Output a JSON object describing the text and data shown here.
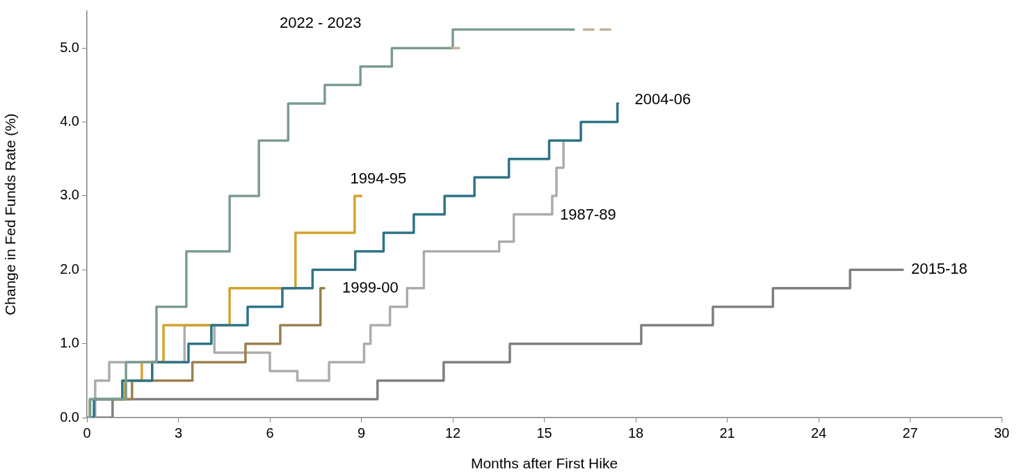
{
  "chart_data": {
    "type": "step",
    "xlabel": "Months after First Hike",
    "ylabel": "Change in Fed Funds Rate (%)",
    "xlim": [
      0,
      30
    ],
    "xticks": [
      0,
      3,
      6,
      9,
      12,
      15,
      18,
      21,
      24,
      27,
      30
    ],
    "ylim": [
      0,
      5.5
    ],
    "yticks": [
      {
        "value": 0,
        "label": "0.0"
      },
      {
        "value": 1,
        "label": "1.0"
      },
      {
        "value": 2,
        "label": "2.0"
      },
      {
        "value": 3,
        "label": "3.0"
      },
      {
        "value": 4,
        "label": "4.0"
      },
      {
        "value": 5,
        "label": "5.0"
      }
    ],
    "grid": false,
    "legend": false,
    "marker": "none",
    "line_style": "solid",
    "series": [
      {
        "name": "2015-18",
        "color": "#7f7f7f",
        "x": [
          0,
          0.84,
          9.53,
          11.7,
          13.87,
          18.18,
          20.53,
          22.5,
          25.03,
          26.76
        ],
        "values": [
          0,
          0.25,
          0.5,
          0.75,
          1.0,
          1.25,
          1.5,
          1.75,
          2.0,
          2.0
        ]
      },
      {
        "name": "1987-89",
        "color": "#acacac",
        "x": [
          0,
          0.27,
          0.73,
          3.2,
          4.18,
          6.0,
          6.9,
          7.94,
          9.09,
          9.3,
          9.94,
          10.5,
          11.05,
          13.52,
          14.0,
          15.26,
          15.4,
          15.63,
          15.65
        ],
        "values": [
          0,
          0.5,
          0.75,
          1.25,
          0.88,
          0.63,
          0.5,
          0.75,
          1.0,
          1.25,
          1.5,
          1.75,
          2.25,
          2.38,
          2.75,
          3.0,
          3.38,
          3.75,
          3.75
        ]
      },
      {
        "name": "1999-00",
        "color": "#9a8050",
        "x": [
          0,
          0.1,
          1.48,
          3.46,
          5.2,
          6.34,
          7.66,
          7.78
        ],
        "values": [
          0,
          0.25,
          0.5,
          0.75,
          1.0,
          1.25,
          1.75,
          1.75
        ]
      },
      {
        "name": "1994-95",
        "color": "#d4a22e",
        "x": [
          0,
          0.1,
          1.25,
          1.8,
          2.51,
          4.68,
          6.84,
          8.78,
          9.0
        ],
        "values": [
          0,
          0.25,
          0.5,
          0.75,
          1.25,
          1.75,
          2.5,
          3.0,
          3.0
        ]
      },
      {
        "name": "2004-06",
        "color": "#2e7385",
        "x": [
          0,
          0.23,
          1.16,
          2.14,
          3.33,
          4.08,
          5.27,
          6.41,
          7.4,
          8.8,
          9.73,
          10.72,
          11.73,
          12.71,
          13.84,
          15.16,
          16.2,
          17.4,
          17.42
        ],
        "values": [
          0,
          0.25,
          0.5,
          0.75,
          1.0,
          1.25,
          1.5,
          1.75,
          2.0,
          2.25,
          2.5,
          2.75,
          3.0,
          3.25,
          3.5,
          3.75,
          4.0,
          4.25,
          4.25
        ]
      },
      {
        "name": "2022 - 2023",
        "color": "#7c9c90",
        "x": [
          0,
          0.1,
          1.28,
          2.28,
          3.26,
          4.68,
          5.64,
          6.6,
          7.8,
          8.97,
          10.0,
          12.0,
          15.97
        ],
        "values": [
          0,
          0.25,
          0.75,
          1.5,
          2.25,
          3.0,
          3.75,
          4.25,
          4.5,
          4.75,
          5.0,
          5.25,
          5.25
        ]
      },
      {
        "line_style": "dashed",
        "color": "#c4b09a",
        "x": [
          12.0,
          12.2,
          12.3,
          16.3,
          17.2
        ],
        "values": [
          5.0,
          5.0,
          null,
          5.25,
          5.25
        ]
      }
    ]
  }
}
